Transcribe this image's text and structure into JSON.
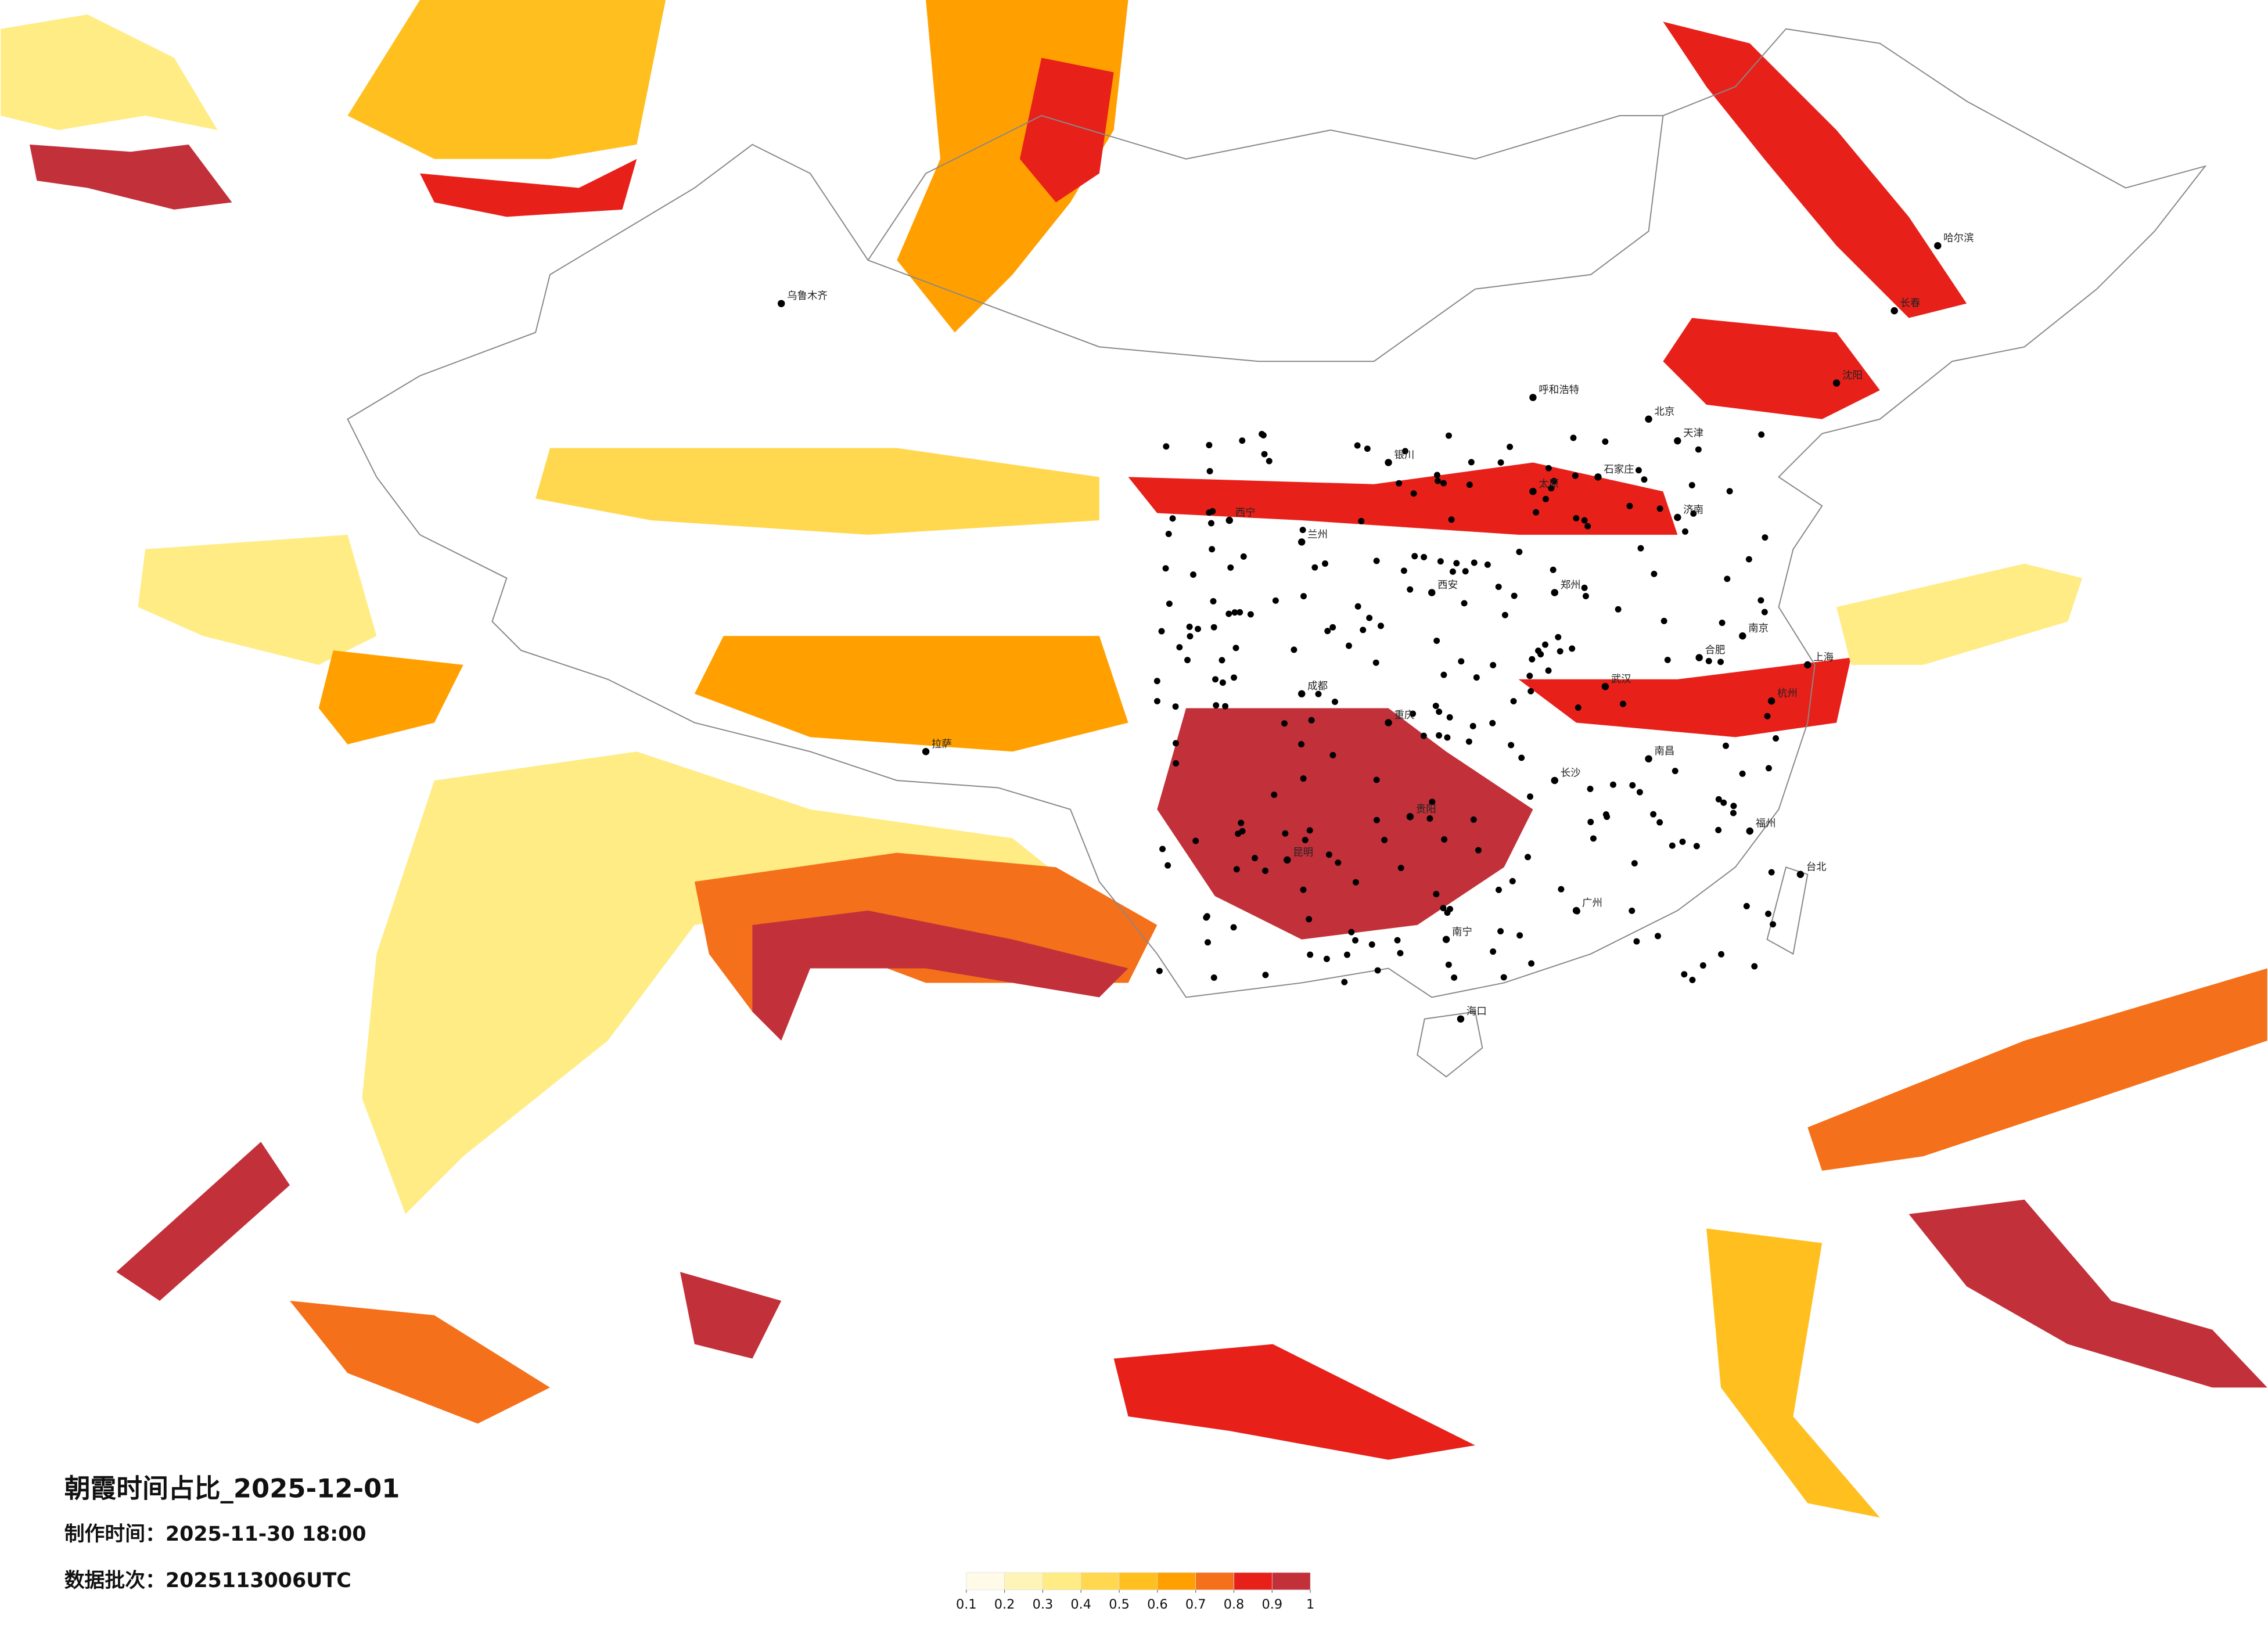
{
  "map": {
    "title": "朝霞时间占比_2025-12-01",
    "made_time": "制作时间：2025-11-30 18:00",
    "batch": "数据批次：2025113006UTC",
    "legend": {
      "ticks": [
        0.1,
        0.2,
        0.3,
        0.4,
        0.5,
        0.6,
        0.7,
        0.8,
        0.9,
        1
      ],
      "colors": [
        "#fffbe8",
        "#fff4b8",
        "#ffec85",
        "#ffd84f",
        "#ffbf1f",
        "#ffa000",
        "#f5701a",
        "#e8201a",
        "#c2303a"
      ]
    },
    "cities": [
      "北京",
      "天津",
      "石家庄",
      "济南",
      "太原",
      "郑州",
      "西安",
      "武汉",
      "长沙",
      "南昌",
      "合肥",
      "南京",
      "上海",
      "杭州",
      "福州",
      "广州",
      "南宁",
      "贵阳",
      "昆明",
      "成都",
      "重庆",
      "兰州",
      "西宁",
      "银川",
      "呼和浩特",
      "沈阳",
      "长春",
      "哈尔滨",
      "乌鲁木齐",
      "拉萨",
      "海口",
      "台北"
    ]
  }
}
